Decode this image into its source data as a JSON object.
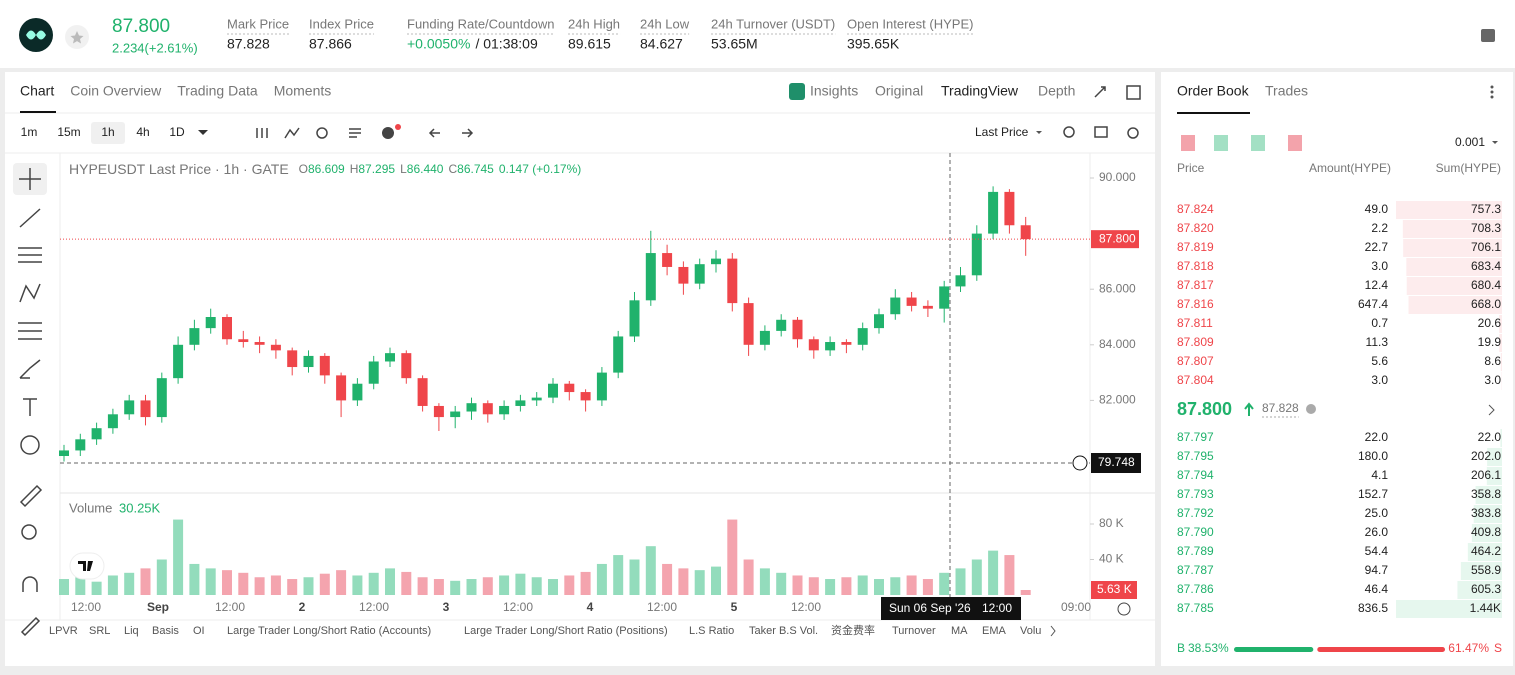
{
  "header": {
    "price": "87.800",
    "change": "2.234(+2.61%)",
    "stats": [
      {
        "label": "Mark Price",
        "value": "87.828"
      },
      {
        "label": "Index Price",
        "value": "87.866"
      },
      {
        "label": "Funding Rate/Countdown",
        "value": "+0.0050%",
        "extra": "/ 01:38:09"
      },
      {
        "label": "24h High",
        "value": "89.615"
      },
      {
        "label": "24h Low",
        "value": "84.627"
      },
      {
        "label": "24h Turnover (USDT)",
        "value": "53.65M"
      },
      {
        "label": "Open Interest (HYPE)",
        "value": "395.65K"
      }
    ]
  },
  "tabs": [
    "Chart",
    "Coin Overview",
    "Trading Data",
    "Moments"
  ],
  "view_tabs": [
    "Insights",
    "Original",
    "TradingView",
    "Depth"
  ],
  "intervals": [
    "1m",
    "15m",
    "1h",
    "4h",
    "1D"
  ],
  "price_source": "Last Price",
  "chart_data": {
    "type": "candlestick",
    "title": "HYPEUSDT Last Price · 1h · GATE",
    "ohlc": [
      {
        "label": "O",
        "value": "86.609"
      },
      {
        "label": "H",
        "value": "87.295"
      },
      {
        "label": "L",
        "value": "86.440"
      },
      {
        "label": "C",
        "value": "86.745"
      }
    ],
    "change": "0.147 (+0.17%)",
    "ylim": [
      79.4,
      90.4
    ],
    "yticks": [
      {
        "value": 90,
        "label": "90.000"
      },
      {
        "value": 86,
        "label": "86.000"
      },
      {
        "value": 84,
        "label": "84.000"
      },
      {
        "value": 82,
        "label": "82.000"
      }
    ],
    "last_price": {
      "value": 87.8,
      "label": "87.800"
    },
    "crosshair": {
      "value": 79.748,
      "label": "79.748"
    },
    "crosshair_time": [
      "Sun 06 Sep '26",
      "12:00"
    ],
    "x_labels": [
      "12:00",
      "Sep",
      "12:00",
      "2",
      "12:00",
      "3",
      "12:00",
      "4",
      "12:00",
      "5",
      "12:00"
    ],
    "x_last_label": "09:00",
    "candles": [
      [
        80.0,
        80.4,
        79.8,
        80.2
      ],
      [
        80.2,
        80.8,
        80.0,
        80.6
      ],
      [
        80.6,
        81.2,
        80.4,
        81.0
      ],
      [
        81.0,
        81.7,
        80.8,
        81.5
      ],
      [
        81.5,
        82.2,
        81.3,
        82.0
      ],
      [
        82.0,
        82.2,
        81.1,
        81.4
      ],
      [
        81.4,
        83.0,
        81.2,
        82.8
      ],
      [
        82.8,
        84.3,
        82.6,
        84.0
      ],
      [
        84.0,
        84.9,
        83.8,
        84.6
      ],
      [
        84.6,
        85.3,
        84.4,
        85.0
      ],
      [
        85.0,
        85.1,
        84.0,
        84.2
      ],
      [
        84.2,
        84.5,
        83.9,
        84.1
      ],
      [
        84.1,
        84.3,
        83.7,
        84.0
      ],
      [
        84.0,
        84.2,
        83.5,
        83.8
      ],
      [
        83.8,
        83.9,
        82.9,
        83.2
      ],
      [
        83.2,
        83.8,
        83.0,
        83.6
      ],
      [
        83.6,
        83.7,
        82.6,
        82.9
      ],
      [
        82.9,
        83.0,
        81.4,
        82.0
      ],
      [
        82.0,
        82.8,
        81.8,
        82.6
      ],
      [
        82.6,
        83.6,
        82.4,
        83.4
      ],
      [
        83.4,
        83.9,
        83.2,
        83.7
      ],
      [
        83.7,
        83.8,
        82.6,
        82.8
      ],
      [
        82.8,
        82.9,
        81.6,
        81.8
      ],
      [
        81.8,
        81.9,
        80.9,
        81.4
      ],
      [
        81.4,
        81.8,
        81.0,
        81.6
      ],
      [
        81.6,
        82.1,
        81.3,
        81.9
      ],
      [
        81.9,
        82.0,
        81.2,
        81.5
      ],
      [
        81.5,
        82.0,
        81.3,
        81.8
      ],
      [
        81.8,
        82.2,
        81.6,
        82.0
      ],
      [
        82.0,
        82.3,
        81.8,
        82.1
      ],
      [
        82.1,
        82.8,
        81.9,
        82.6
      ],
      [
        82.6,
        82.7,
        82.0,
        82.3
      ],
      [
        82.3,
        82.4,
        81.6,
        82.0
      ],
      [
        82.0,
        83.2,
        81.8,
        83.0
      ],
      [
        83.0,
        84.5,
        82.8,
        84.3
      ],
      [
        84.3,
        85.9,
        84.1,
        85.6
      ],
      [
        85.6,
        88.1,
        85.4,
        87.3
      ],
      [
        87.3,
        87.6,
        86.5,
        86.8
      ],
      [
        86.8,
        87.0,
        85.8,
        86.2
      ],
      [
        86.2,
        87.1,
        86.0,
        86.9
      ],
      [
        86.9,
        87.4,
        86.6,
        87.1
      ],
      [
        87.1,
        87.3,
        85.2,
        85.5
      ],
      [
        85.5,
        85.7,
        83.6,
        84.0
      ],
      [
        84.0,
        84.7,
        83.8,
        84.5
      ],
      [
        84.5,
        85.1,
        84.3,
        84.9
      ],
      [
        84.9,
        85.0,
        83.9,
        84.2
      ],
      [
        84.2,
        84.3,
        83.5,
        83.8
      ],
      [
        83.8,
        84.3,
        83.6,
        84.1
      ],
      [
        84.1,
        84.2,
        83.7,
        84.0
      ],
      [
        84.0,
        84.8,
        83.8,
        84.6
      ],
      [
        84.6,
        85.3,
        84.4,
        85.1
      ],
      [
        85.1,
        86.0,
        84.9,
        85.7
      ],
      [
        85.7,
        85.9,
        85.2,
        85.4
      ],
      [
        85.4,
        85.6,
        85.0,
        85.3
      ],
      [
        85.3,
        86.3,
        84.8,
        86.1
      ],
      [
        86.1,
        86.8,
        85.9,
        86.5
      ],
      [
        86.5,
        88.3,
        86.3,
        88.0
      ],
      [
        88.0,
        89.7,
        87.8,
        89.5
      ],
      [
        89.5,
        89.6,
        88.0,
        88.3
      ],
      [
        88.3,
        88.6,
        87.2,
        87.8
      ]
    ],
    "volume_title": "Volume",
    "volume_current": "30.25K",
    "vylim": [
      0,
      80
    ],
    "vyticks": [
      {
        "value": 80,
        "label": "80 K"
      },
      {
        "value": 40,
        "label": "40 K"
      }
    ],
    "volume_last": {
      "value": 5.63,
      "label": "5.63 K"
    },
    "volumes": [
      18,
      20,
      15,
      22,
      25,
      30,
      40,
      85,
      35,
      30,
      28,
      25,
      20,
      22,
      18,
      20,
      24,
      28,
      22,
      25,
      30,
      26,
      20,
      18,
      16,
      18,
      20,
      22,
      24,
      20,
      18,
      22,
      26,
      35,
      45,
      40,
      55,
      35,
      30,
      28,
      32,
      85,
      40,
      30,
      25,
      22,
      20,
      18,
      20,
      22,
      18,
      20,
      22,
      18,
      25,
      30,
      40,
      50,
      45,
      5.63
    ]
  },
  "indicators": [
    "LPVR",
    "SRL",
    "Liq",
    "Basis",
    "OI",
    "Large Trader Long/Short Ratio (Accounts)",
    "Large Trader Long/Short Ratio (Positions)",
    "L.S Ratio",
    "Taker B.S Vol.",
    "资金费率",
    "Turnover",
    "MA",
    "EMA",
    "Volu"
  ],
  "order_book": {
    "tabs": [
      "Order Book",
      "Trades"
    ],
    "precision": "0.001",
    "columns": [
      "Price",
      "Amount(HYPE)",
      "Sum(HYPE)"
    ],
    "asks": [
      {
        "price": "87.824",
        "amount": "49.0",
        "sum": {
          "value": 757.3,
          "label": "757.3"
        }
      },
      {
        "price": "87.820",
        "amount": "2.2",
        "sum": {
          "value": 708.3,
          "label": "708.3"
        }
      },
      {
        "price": "87.819",
        "amount": "22.7",
        "sum": {
          "value": 706.1,
          "label": "706.1"
        }
      },
      {
        "price": "87.818",
        "amount": "3.0",
        "sum": {
          "value": 683.4,
          "label": "683.4"
        }
      },
      {
        "price": "87.817",
        "amount": "12.4",
        "sum": {
          "value": 680.4,
          "label": "680.4"
        }
      },
      {
        "price": "87.816",
        "amount": "647.4",
        "sum": {
          "value": 668,
          "label": "668.0"
        }
      },
      {
        "price": "87.811",
        "amount": "0.7",
        "sum": {
          "value": 20.6,
          "label": "20.6"
        }
      },
      {
        "price": "87.809",
        "amount": "11.3",
        "sum": {
          "value": 19.9,
          "label": "19.9"
        }
      },
      {
        "price": "87.807",
        "amount": "5.6",
        "sum": {
          "value": 8.6,
          "label": "8.6"
        }
      },
      {
        "price": "87.804",
        "amount": "3.0",
        "sum": {
          "value": 3,
          "label": "3.0"
        }
      }
    ],
    "mid_price": "87.800",
    "mark_price": "87.828",
    "bids": [
      {
        "price": "87.797",
        "amount": "22.0",
        "sum": {
          "value": 22,
          "label": "22.0"
        }
      },
      {
        "price": "87.795",
        "amount": "180.0",
        "sum": {
          "value": 202,
          "label": "202.0"
        }
      },
      {
        "price": "87.794",
        "amount": "4.1",
        "sum": {
          "value": 206.1,
          "label": "206.1"
        }
      },
      {
        "price": "87.793",
        "amount": "152.7",
        "sum": {
          "value": 358.8,
          "label": "358.8"
        }
      },
      {
        "price": "87.792",
        "amount": "25.0",
        "sum": {
          "value": 383.8,
          "label": "383.8"
        }
      },
      {
        "price": "87.790",
        "amount": "26.0",
        "sum": {
          "value": 409.8,
          "label": "409.8"
        }
      },
      {
        "price": "87.789",
        "amount": "54.4",
        "sum": {
          "value": 464.2,
          "label": "464.2"
        }
      },
      {
        "price": "87.787",
        "amount": "94.7",
        "sum": {
          "value": 558.9,
          "label": "558.9"
        }
      },
      {
        "price": "87.786",
        "amount": "46.4",
        "sum": {
          "value": 605.3,
          "label": "605.3"
        }
      },
      {
        "price": "87.785",
        "amount": "836.5",
        "sum": {
          "value": 1440,
          "label": "1.44K"
        }
      }
    ],
    "buy_label": "B",
    "buy": {
      "value": 38.53,
      "label": "38.53%"
    },
    "sell_label": "S",
    "sell": {
      "value": 61.47,
      "label": "61.47%"
    }
  }
}
